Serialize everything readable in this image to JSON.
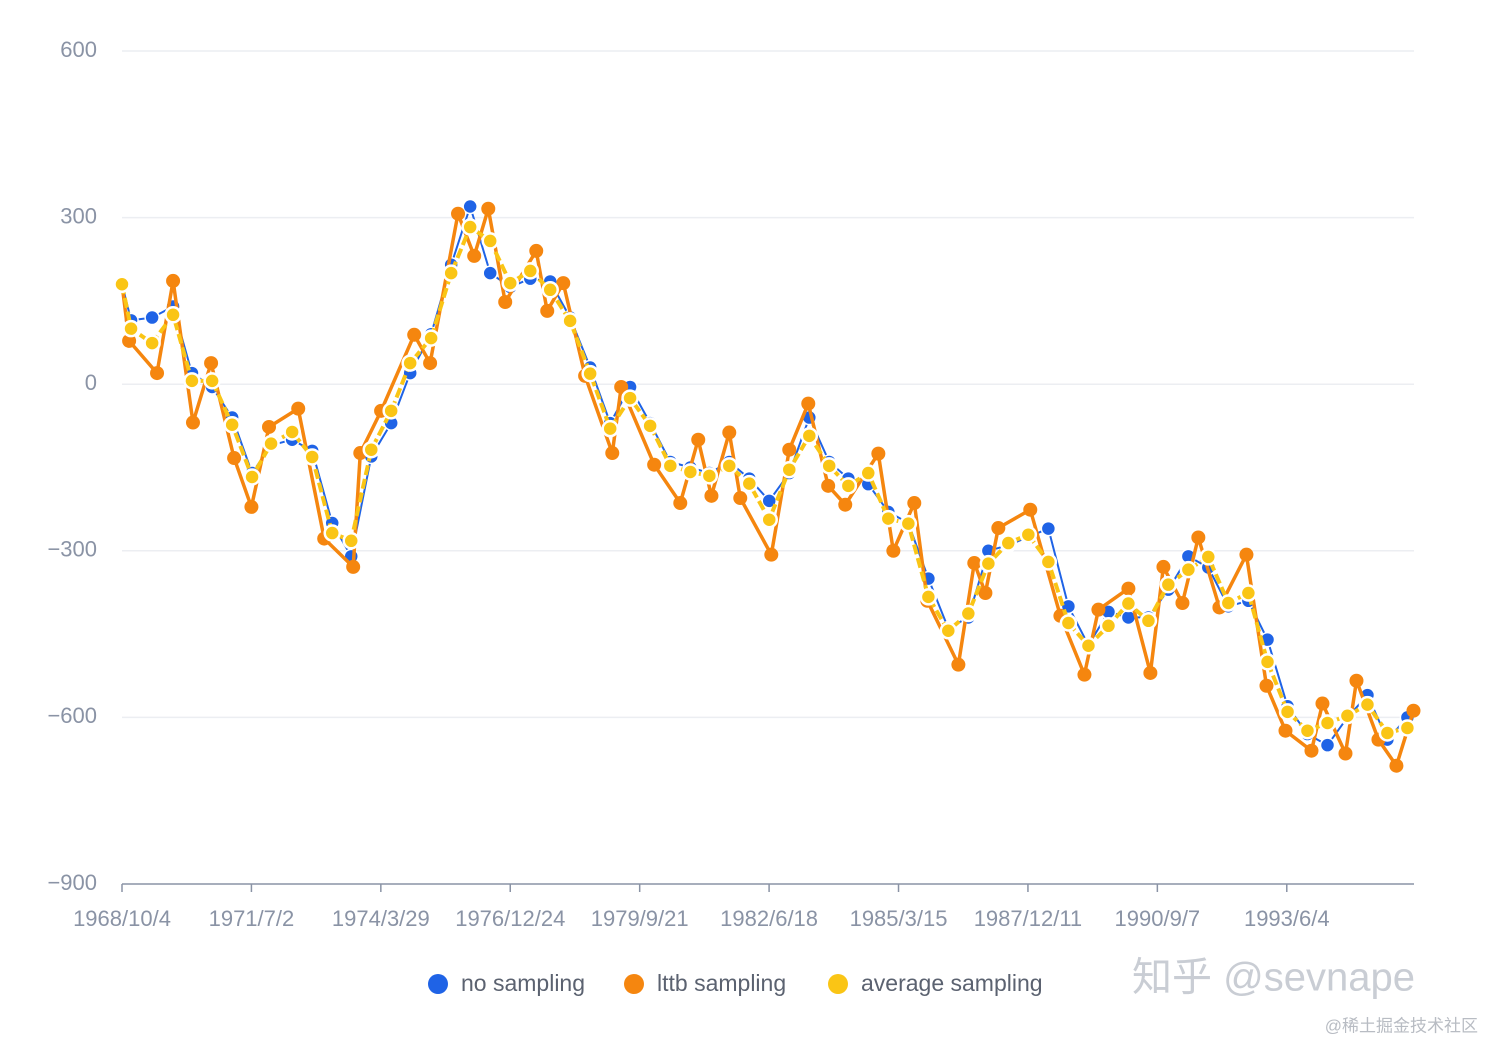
{
  "chart_data": {
    "type": "line",
    "ylim": [
      -900,
      600
    ],
    "yticks": [
      {
        "value": -900,
        "label": "−900"
      },
      {
        "value": -600,
        "label": "−600"
      },
      {
        "value": -300,
        "label": "−300"
      },
      0,
      300,
      600
    ],
    "xlim": [
      "1968/10/4",
      "1996/2/13"
    ],
    "xticks": [
      "1968/10/4",
      "1971/7/2",
      "1974/3/29",
      "1976/12/24",
      "1979/9/21",
      "1982/6/18",
      "1985/3/15",
      "1987/12/11",
      "1990/9/7",
      "1993/6/4"
    ],
    "grid": true,
    "legend": "bottom",
    "watermark": "知乎 @sevnape",
    "source_mark": "@稀土掘金技术社区",
    "series": [
      {
        "name": "no sampling",
        "color": "#1f63e6",
        "x": [
          "1968/10/4",
          "1968/12/13",
          "1969/5/25",
          "1969/11/3",
          "1970/3/29",
          "1970/9/1",
          "1971/2/3",
          "1971/7/7",
          "1971/12/1",
          "1972/5/12",
          "1972/10/14",
          "1973/3/18",
          "1973/8/12",
          "1974/1/14",
          "1974/6/17",
          "1974/11/11",
          "1975/4/22",
          "1975/9/24",
          "1976/2/18",
          "1976/7/22",
          "1976/12/24",
          "1977/5/28",
          "1977/10/29",
          "1978/4/1",
          "1978/9/3",
          "1979/2/5",
          "1979/7/9",
          "1979/12/11",
          "1980/5/15",
          "1980/10/17",
          "1981/3/13",
          "1981/8/14",
          "1982/1/16",
          "1982/6/19",
          "1982/11/21",
          "1983/4/25",
          "1983/9/26",
          "1984/2/21",
          "1984/7/24",
          "1984/12/26",
          "1985/5/30",
          "1985/11/1",
          "1986/4/4",
          "1986/9/6",
          "1987/2/8",
          "1987/7/12",
          "1987/12/14",
          "1988/5/17",
          "1988/10/19",
          "1989/3/23",
          "1989/8/25",
          "1990/1/26",
          "1990/6/30",
          "1990/12/1",
          "1991/5/5",
          "1991/10/6",
          "1992/3/9",
          "1992/8/11",
          "1993/1/6",
          "1993/6/10",
          "1993/11/11",
          "1994/4/15",
          "1994/9/16",
          "1995/2/18",
          "1995/7/22",
          "1995/12/24"
        ],
        "values": [
          180,
          115,
          120,
          140,
          20,
          -5,
          -60,
          -160,
          -110,
          -100,
          -120,
          -250,
          -310,
          -130,
          -70,
          20,
          90,
          215,
          320,
          200,
          175,
          190,
          185,
          120,
          30,
          -70,
          -5,
          -70,
          -140,
          -150,
          -160,
          -140,
          -170,
          -210,
          -160,
          -60,
          -140,
          -170,
          -180,
          -230,
          -250,
          -350,
          -440,
          -420,
          -300,
          -290,
          -275,
          -260,
          -400,
          -470,
          -410,
          -420,
          -420,
          -370,
          -310,
          -330,
          -400,
          -390,
          -460,
          -580,
          -630,
          -650,
          -600,
          -560,
          -640,
          -600
        ]
      },
      {
        "name": "lttb sampling",
        "color": "#f5860f",
        "x": [
          "1968/10/4",
          "1968/11/28",
          "1969/7/2",
          "1969/11/3",
          "1970/4/6",
          "1970/8/24",
          "1971/2/18",
          "1971/7/2",
          "1971/11/15",
          "1972/6/28",
          "1973/1/15",
          "1973/8/27",
          "1973/10/21",
          "1974/3/31",
          "1974/12/12",
          "1975/4/14",
          "1975/11/16",
          "1976/3/20",
          "1976/7/7",
          "1976/11/15",
          "1977/7/13",
          "1977/10/6",
          "1978/2/7",
          "1978/7/26",
          "1979/2/21",
          "1979/5/1",
          "1980/1/11",
          "1980/7/31",
          "1980/12/17",
          "1981/3/29",
          "1981/8/14",
          "1981/11/7",
          "1982/7/5",
          "1982/11/21",
          "1983/4/17",
          "1983/9/18",
          "1984/1/28",
          "1984/10/10",
          "1985/2/3",
          "1985/7/15",
          "1985/10/24",
          "1986/6/21",
          "1986/10/22",
          "1987/1/16",
          "1987/4/26",
          "1987/12/29",
          "1988/8/18",
          "1989/2/20",
          "1989/6/8",
          "1990/1/26",
          "1990/7/15",
          "1990/10/24",
          "1991/3/20",
          "1991/7/21",
          "1991/12/31",
          "1992/7/27",
          "1992/12/29",
          "1993/5/25",
          "1993/12/12",
          "1994/3/7",
          "1994/9/1",
          "1994/11/25",
          "1995/5/14",
          "1995/9/30",
          "1996/2/9"
        ],
        "values": [
          180,
          78,
          20,
          186,
          -69,
          38,
          -133,
          -221,
          -77,
          -44,
          -278,
          -329,
          -124,
          -48,
          89,
          38,
          307,
          231,
          316,
          148,
          240,
          132,
          182,
          15,
          -124,
          -5,
          -145,
          -214,
          -100,
          -201,
          -87,
          -205,
          -307,
          -118,
          -35,
          -183,
          -217,
          -125,
          -300,
          -214,
          -390,
          -505,
          -322,
          -376,
          -259,
          -226,
          -417,
          -523,
          -406,
          -368,
          -520,
          -329,
          -394,
          -276,
          -402,
          -307,
          -543,
          -624,
          -660,
          -575,
          -665,
          -534,
          -640,
          -687,
          -588
        ]
      },
      {
        "name": "average sampling",
        "color": "#fac515",
        "x": [
          "1968/10/4",
          "1968/12/13",
          "1969/5/25",
          "1969/11/3",
          "1970/3/29",
          "1970/9/1",
          "1971/2/3",
          "1971/7/7",
          "1971/12/1",
          "1972/5/12",
          "1972/10/14",
          "1973/3/18",
          "1973/8/12",
          "1974/1/14",
          "1974/6/17",
          "1974/11/11",
          "1975/4/22",
          "1975/9/24",
          "1976/2/18",
          "1976/7/22",
          "1976/12/24",
          "1977/5/28",
          "1977/10/29",
          "1978/4/1",
          "1978/9/3",
          "1979/2/5",
          "1979/7/9",
          "1979/12/11",
          "1980/5/15",
          "1980/10/17",
          "1981/3/13",
          "1981/8/14",
          "1982/1/16",
          "1982/6/19",
          "1982/11/21",
          "1983/4/25",
          "1983/9/26",
          "1984/2/21",
          "1984/7/24",
          "1984/12/26",
          "1985/5/30",
          "1985/11/1",
          "1986/4/4",
          "1986/9/6",
          "1987/2/8",
          "1987/7/12",
          "1987/12/14",
          "1988/5/17",
          "1988/10/19",
          "1989/3/23",
          "1989/8/25",
          "1990/1/26",
          "1990/6/30",
          "1990/12/1",
          "1991/5/5",
          "1991/10/6",
          "1992/3/9",
          "1992/8/11",
          "1993/1/6",
          "1993/6/10",
          "1993/11/11",
          "1994/4/15",
          "1994/9/16",
          "1995/2/18",
          "1995/7/22",
          "1995/12/24"
        ],
        "values": [
          180,
          100,
          74,
          125,
          6,
          6,
          -73,
          -167,
          -107,
          -86,
          -131,
          -268,
          -282,
          -118,
          -48,
          38,
          83,
          200,
          283,
          258,
          182,
          204,
          170,
          114,
          19,
          -80,
          -25,
          -75,
          -147,
          -158,
          -165,
          -147,
          -179,
          -244,
          -154,
          -93,
          -147,
          -183,
          -160,
          -242,
          -251,
          -383,
          -444,
          -413,
          -323,
          -286,
          -271,
          -320,
          -430,
          -471,
          -435,
          -395,
          -426,
          -361,
          -334,
          -311,
          -394,
          -376,
          -500,
          -590,
          -624,
          -610,
          -597,
          -577,
          -628,
          -619
        ]
      }
    ]
  }
}
